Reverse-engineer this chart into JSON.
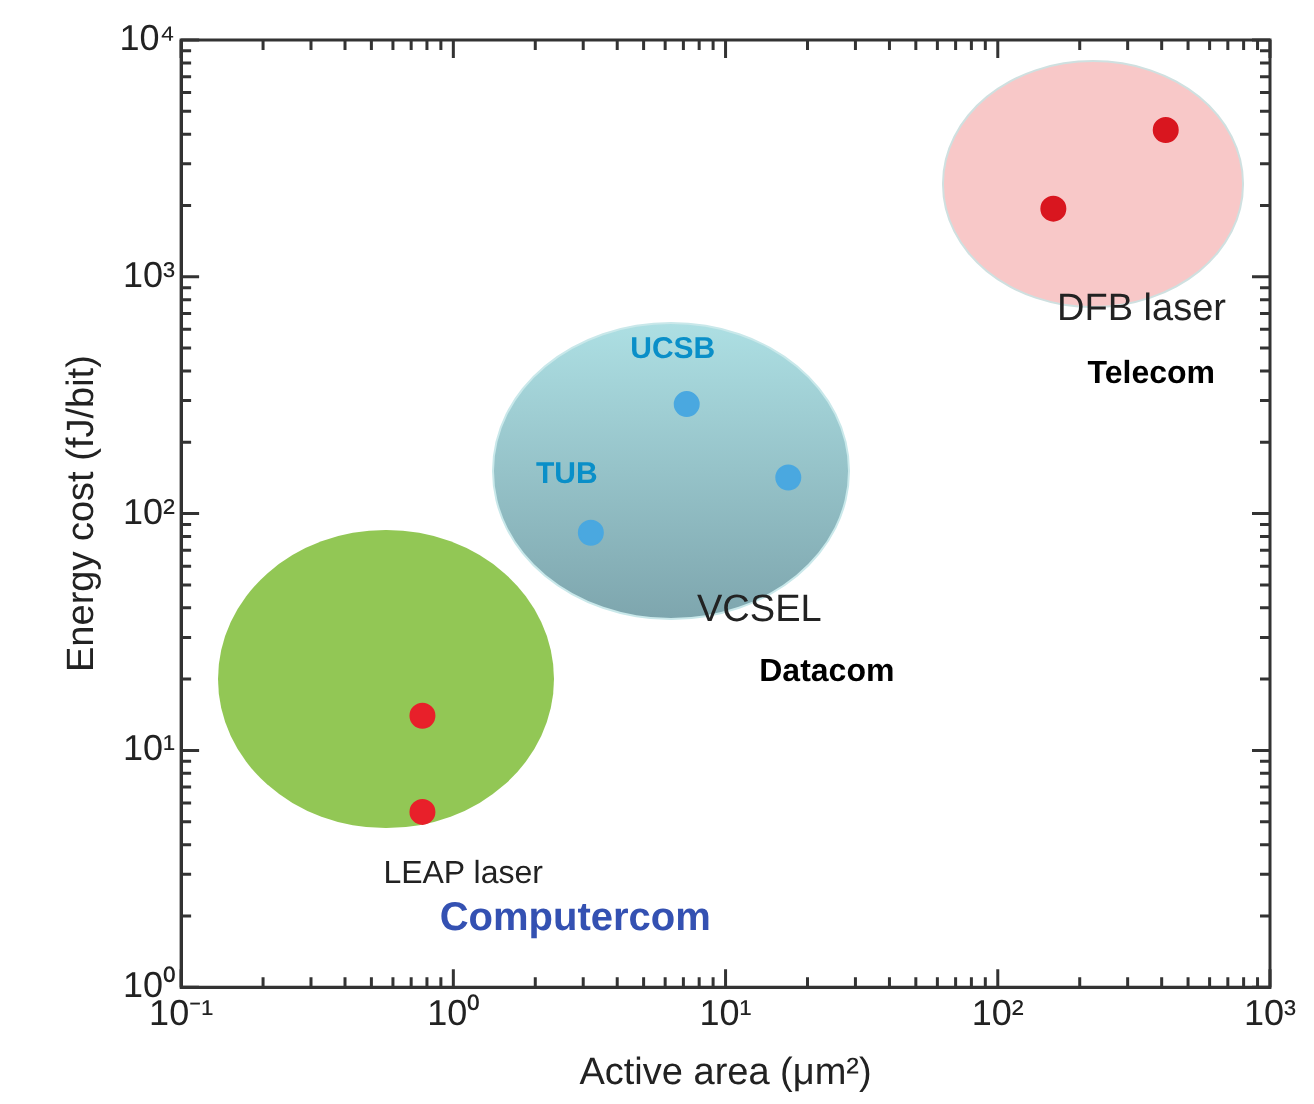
{
  "chart_data": {
    "type": "scatter",
    "xlabel": "Active area (μm²)",
    "ylabel": "Energy cost (fJ/bit)",
    "log": "xy",
    "marker": "circle",
    "grid": false,
    "legend": false,
    "xlim": [
      0.1,
      1000
    ],
    "ylim": [
      1,
      10000
    ],
    "xticks": [
      {
        "value": 0.1,
        "label": "10⁻¹"
      },
      {
        "value": 0.2,
        "label": null
      },
      {
        "value": 0.3,
        "label": null
      },
      {
        "value": 0.4,
        "label": null
      },
      {
        "value": 0.5,
        "label": null
      },
      {
        "value": 0.6,
        "label": null
      },
      {
        "value": 0.7,
        "label": null
      },
      {
        "value": 0.8,
        "label": null
      },
      {
        "value": 0.9,
        "label": null
      },
      {
        "value": 1,
        "label": "10⁰"
      },
      {
        "value": 2,
        "label": null
      },
      {
        "value": 3,
        "label": null
      },
      {
        "value": 4,
        "label": null
      },
      {
        "value": 5,
        "label": null
      },
      {
        "value": 6,
        "label": null
      },
      {
        "value": 7,
        "label": null
      },
      {
        "value": 8,
        "label": null
      },
      {
        "value": 9,
        "label": null
      },
      {
        "value": 10,
        "label": "10¹"
      },
      {
        "value": 20,
        "label": null
      },
      {
        "value": 30,
        "label": null
      },
      {
        "value": 40,
        "label": null
      },
      {
        "value": 50,
        "label": null
      },
      {
        "value": 60,
        "label": null
      },
      {
        "value": 70,
        "label": null
      },
      {
        "value": 80,
        "label": null
      },
      {
        "value": 90,
        "label": null
      },
      {
        "value": 100,
        "label": "10²"
      },
      {
        "value": 200,
        "label": null
      },
      {
        "value": 300,
        "label": null
      },
      {
        "value": 400,
        "label": null
      },
      {
        "value": 500,
        "label": null
      },
      {
        "value": 600,
        "label": null
      },
      {
        "value": 700,
        "label": null
      },
      {
        "value": 800,
        "label": null
      },
      {
        "value": 900,
        "label": null
      },
      {
        "value": 1000,
        "label": "10³"
      }
    ],
    "yticks": [
      {
        "value": 1,
        "label": "10⁰"
      },
      {
        "value": 2,
        "label": null
      },
      {
        "value": 3,
        "label": null
      },
      {
        "value": 4,
        "label": null
      },
      {
        "value": 5,
        "label": null
      },
      {
        "value": 6,
        "label": null
      },
      {
        "value": 7,
        "label": null
      },
      {
        "value": 8,
        "label": null
      },
      {
        "value": 9,
        "label": null
      },
      {
        "value": 10,
        "label": "10¹"
      },
      {
        "value": 20,
        "label": null
      },
      {
        "value": 30,
        "label": null
      },
      {
        "value": 40,
        "label": null
      },
      {
        "value": 50,
        "label": null
      },
      {
        "value": 60,
        "label": null
      },
      {
        "value": 70,
        "label": null
      },
      {
        "value": 80,
        "label": null
      },
      {
        "value": 90,
        "label": null
      },
      {
        "value": 100,
        "label": "10²"
      },
      {
        "value": 200,
        "label": null
      },
      {
        "value": 300,
        "label": null
      },
      {
        "value": 400,
        "label": null
      },
      {
        "value": 500,
        "label": null
      },
      {
        "value": 600,
        "label": null
      },
      {
        "value": 700,
        "label": null
      },
      {
        "value": 800,
        "label": null
      },
      {
        "value": 900,
        "label": null
      },
      {
        "value": 1000,
        "label": "10³"
      },
      {
        "value": 2000,
        "label": null
      },
      {
        "value": 3000,
        "label": null
      },
      {
        "value": 4000,
        "label": null
      },
      {
        "value": 5000,
        "label": null
      },
      {
        "value": 6000,
        "label": null
      },
      {
        "value": 7000,
        "label": null
      },
      {
        "value": 8000,
        "label": null
      },
      {
        "value": 9000,
        "label": null
      },
      {
        "value": 10000,
        "label": "10⁴"
      }
    ],
    "series": [
      {
        "color": "#e8202a",
        "x": [
          0.77,
          0.77
        ],
        "values": [
          14,
          5.5
        ]
      },
      {
        "color": "#4aa8e0",
        "x": [
          7.2,
          3.2,
          17
        ],
        "values": [
          290,
          83,
          142
        ]
      },
      {
        "color": "#d9161f",
        "x": [
          160,
          414
        ],
        "values": [
          1940,
          4170
        ]
      }
    ],
    "annotations": [
      {
        "text": "UCSB",
        "x": 7.2,
        "y": 290
      },
      {
        "text": "TUB",
        "x": 3.2,
        "y": 83
      },
      "DFB laser",
      "Telecom",
      "VCSEL",
      "Datacom",
      "LEAP laser",
      "Computercom"
    ]
  }
}
